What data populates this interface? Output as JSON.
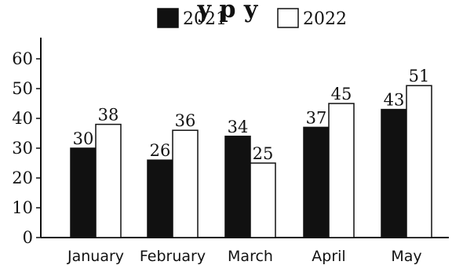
{
  "chart_data": {
    "type": "bar",
    "title": "",
    "title_partial": "y p y",
    "xlabel": "",
    "ylabel": "",
    "categories": [
      "January",
      "February",
      "March",
      "April",
      "May"
    ],
    "series": [
      {
        "name": "2021",
        "values": [
          30,
          26,
          34,
          37,
          43
        ],
        "color": "#111111"
      },
      {
        "name": "2022",
        "values": [
          38,
          36,
          25,
          45,
          51
        ],
        "color": "#ffffff"
      }
    ],
    "ylim": [
      0,
      60
    ],
    "yticks": [
      0,
      10,
      20,
      30,
      40,
      50,
      60
    ],
    "grid": false,
    "legend_position": "top-center",
    "data_labels": true
  }
}
